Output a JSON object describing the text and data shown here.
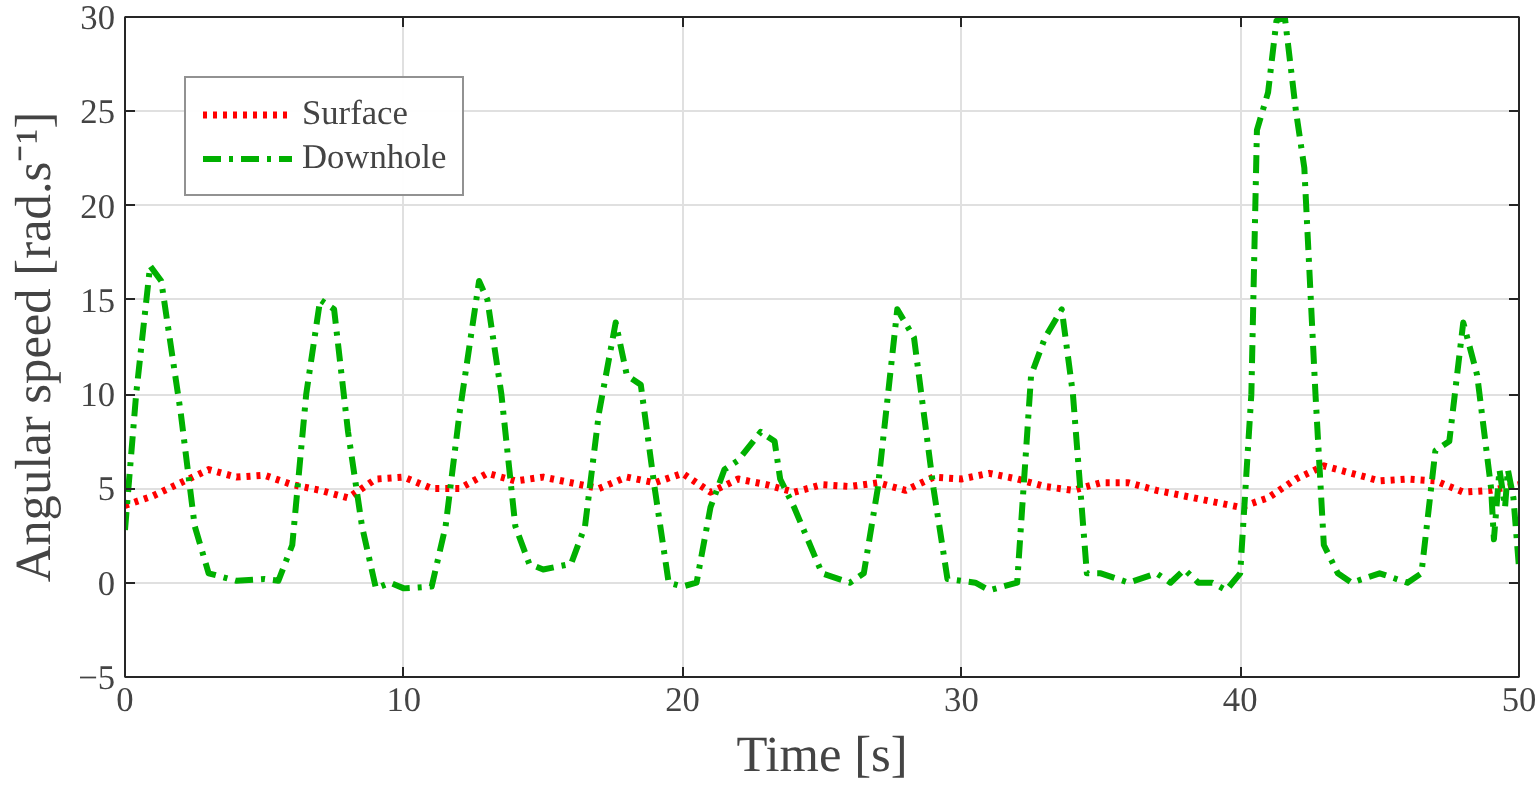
{
  "chart_data": {
    "type": "line",
    "xlabel": "Time [s]",
    "ylabel": "Angular speed [rad.s⁻¹]",
    "xlim": [
      0,
      50
    ],
    "xticks": [
      0,
      10,
      20,
      30,
      40,
      50
    ],
    "ylim": [
      -5,
      30
    ],
    "yticks": [
      -5,
      0,
      5,
      10,
      15,
      20,
      25,
      30
    ],
    "grid": true,
    "legend": "top left",
    "marker": "none",
    "series": [
      {
        "name": "Surface",
        "color": "#ff0000",
        "line_style": "dotted",
        "x": [
          0,
          1,
          2,
          3,
          4,
          5,
          6,
          7,
          8,
          9,
          10,
          11,
          12,
          13,
          14,
          15,
          16,
          17,
          18,
          19,
          20,
          21,
          22,
          23,
          24,
          25,
          26,
          27,
          28,
          29,
          30,
          31,
          32,
          33,
          34,
          35,
          36,
          37,
          38,
          39,
          40,
          41,
          42,
          43,
          44,
          45,
          46,
          47,
          48,
          49,
          50
        ],
        "values": [
          4.1,
          4.6,
          5.3,
          6,
          5.6,
          5.7,
          5.2,
          4.9,
          4.5,
          5.5,
          5.6,
          5,
          5,
          5.8,
          5.4,
          5.6,
          5.3,
          5,
          5.6,
          5.3,
          5.8,
          4.8,
          5.5,
          5.2,
          4.8,
          5.2,
          5.1,
          5.3,
          4.9,
          5.6,
          5.5,
          5.8,
          5.5,
          5.1,
          4.9,
          5.3,
          5.3,
          4.9,
          4.6,
          4.3,
          4,
          4.5,
          5.5,
          6.2,
          5.8,
          5.4,
          5.5,
          5.4,
          4.8,
          4.9,
          5.2
        ]
      },
      {
        "name": "Downhole",
        "color": "#00b000",
        "line_style": "dashdot",
        "x": [
          0,
          0.4,
          0.9,
          1.3,
          2,
          2.5,
          3,
          3.5,
          4,
          5,
          5.5,
          6,
          6.5,
          7,
          7.5,
          8,
          8.5,
          9,
          9.5,
          10,
          11,
          11.5,
          12,
          12.7,
          13,
          13.5,
          14,
          14.5,
          15,
          16,
          16.5,
          17,
          17.6,
          18,
          18.5,
          19,
          19.5,
          20,
          20.5,
          21,
          21.5,
          22,
          22.8,
          23.3,
          23.5,
          24,
          25,
          26,
          26.5,
          27,
          27.7,
          28.3,
          29,
          29.5,
          30.5,
          31,
          32,
          32.5,
          33,
          33.6,
          34,
          34.5,
          35,
          36,
          37,
          37.5,
          38,
          38.5,
          39,
          39.5,
          40,
          40.4,
          40.6,
          41,
          41.3,
          41.6,
          42,
          42.3,
          42.7,
          43,
          43.5,
          44,
          45,
          46,
          46.5,
          47,
          47.5,
          48,
          48.5,
          49,
          49.1,
          49.3,
          49.5,
          49.6,
          49.8,
          50
        ],
        "values": [
          2.8,
          10,
          16.8,
          16,
          9,
          3,
          0.5,
          0.3,
          0.1,
          0.2,
          0.1,
          2,
          10,
          15,
          14.5,
          8,
          3,
          -0.3,
          0,
          -0.3,
          -0.2,
          3,
          9,
          16,
          15,
          10,
          3,
          1,
          0.7,
          1,
          3,
          9,
          13.8,
          11,
          10.5,
          5,
          0,
          -0.2,
          0,
          4,
          6,
          6.5,
          8,
          7.5,
          5.5,
          4,
          0.5,
          0,
          0.5,
          5,
          14.5,
          13,
          5,
          0.2,
          0,
          -0.4,
          0,
          11,
          13,
          14.5,
          10,
          0.5,
          0.5,
          0,
          0.5,
          0,
          0.7,
          0,
          0,
          -0.4,
          0.5,
          10,
          24,
          26,
          29.8,
          30,
          25,
          22,
          10,
          2,
          0.5,
          0,
          0.5,
          0,
          0.5,
          7,
          7.5,
          13.8,
          11,
          5,
          2.3,
          6,
          4,
          6,
          4.5,
          0.8
        ]
      }
    ]
  }
}
